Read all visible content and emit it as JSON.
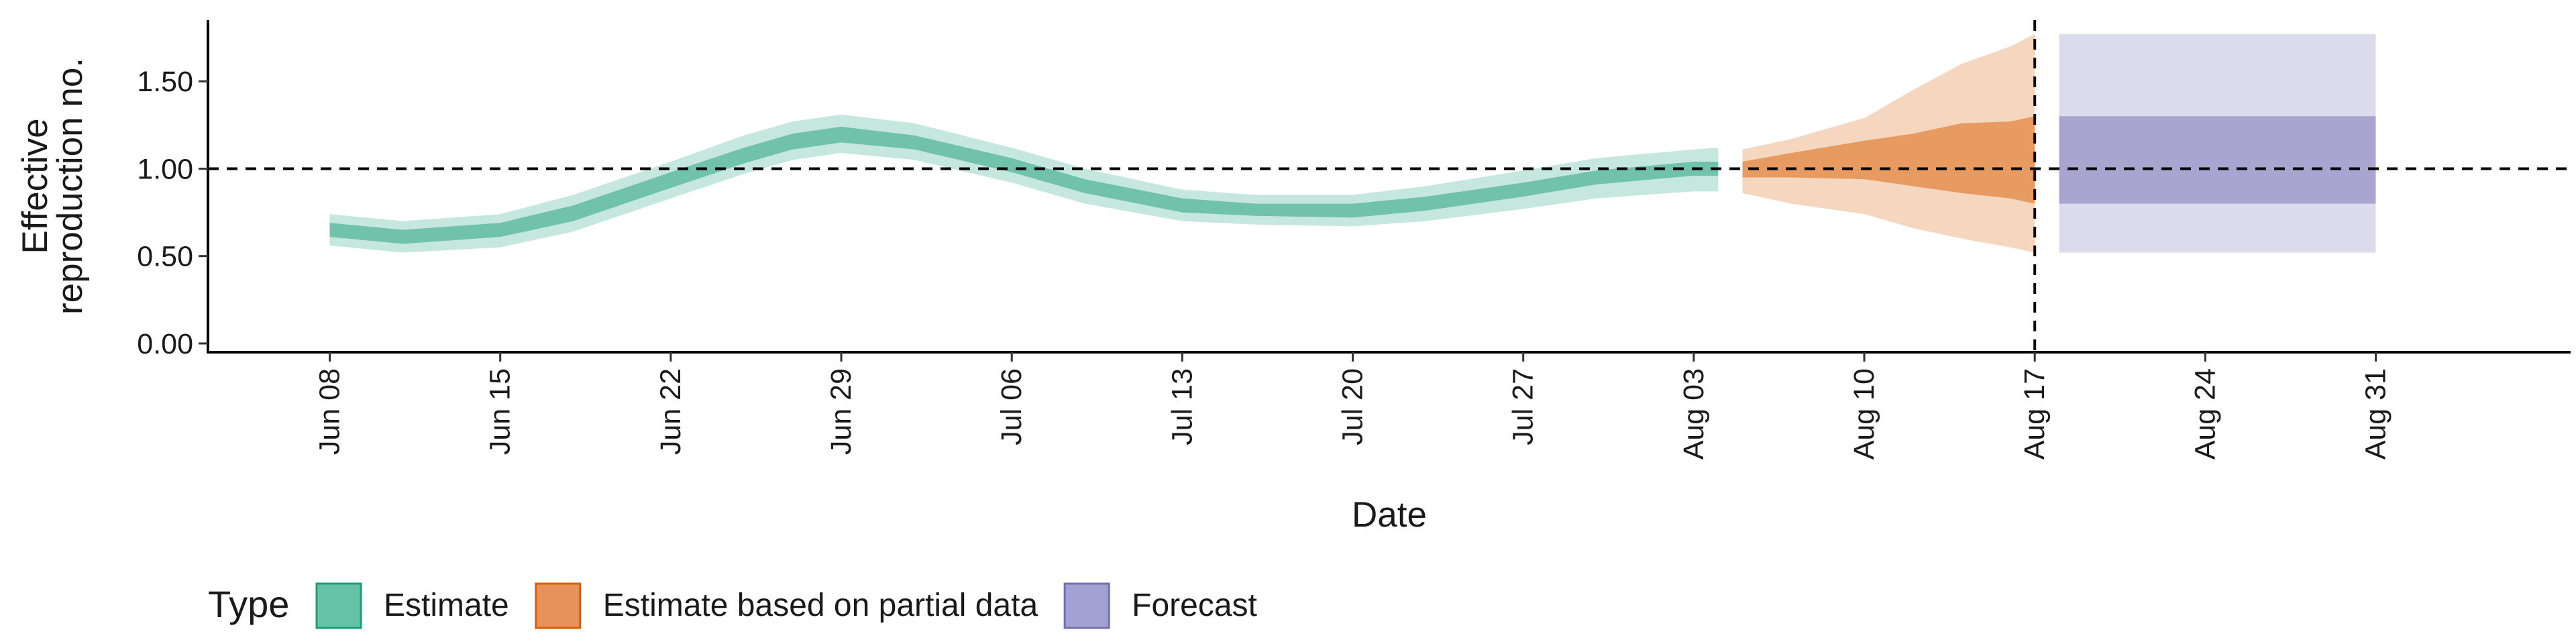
{
  "chart_data": {
    "type": "area",
    "title": "",
    "xlabel": "Date",
    "ylabel_lines": [
      "Effective",
      "reproduction no."
    ],
    "x_type": "date",
    "xlim": [
      "2020-06-03",
      "2020-09-08"
    ],
    "ylim": [
      -0.05,
      1.85
    ],
    "y_ticks": [
      "0.00",
      "0.50",
      "1.00",
      "1.50"
    ],
    "x_ticks": [
      {
        "date": "2020-06-08",
        "label": "Jun 08"
      },
      {
        "date": "2020-06-15",
        "label": "Jun 15"
      },
      {
        "date": "2020-06-22",
        "label": "Jun 22"
      },
      {
        "date": "2020-06-29",
        "label": "Jun 29"
      },
      {
        "date": "2020-07-06",
        "label": "Jul 06"
      },
      {
        "date": "2020-07-13",
        "label": "Jul 13"
      },
      {
        "date": "2020-07-20",
        "label": "Jul 20"
      },
      {
        "date": "2020-07-27",
        "label": "Jul 27"
      },
      {
        "date": "2020-08-03",
        "label": "Aug 03"
      },
      {
        "date": "2020-08-10",
        "label": "Aug 10"
      },
      {
        "date": "2020-08-17",
        "label": "Aug 17"
      },
      {
        "date": "2020-08-24",
        "label": "Aug 24"
      },
      {
        "date": "2020-08-31",
        "label": "Aug 31"
      }
    ],
    "grid": false,
    "reference_line_y": 1.0,
    "reference_line_date": "2020-08-17",
    "legend": {
      "title": "Type",
      "position": "bottom-left",
      "entries": [
        {
          "label": "Estimate",
          "fill": "#66c2a5",
          "stroke": "#1b9e77"
        },
        {
          "label": "Estimate based on partial data",
          "fill": "#e8915a",
          "stroke": "#d95f02"
        },
        {
          "label": "Forecast",
          "fill": "#a3a0d2",
          "stroke": "#7570b3"
        }
      ]
    },
    "series": [
      {
        "type_label": "Estimate",
        "color": "#1b9e77",
        "x": [
          "2020-06-08",
          "2020-06-11",
          "2020-06-15",
          "2020-06-18",
          "2020-06-22",
          "2020-06-25",
          "2020-06-27",
          "2020-06-29",
          "2020-07-02",
          "2020-07-06",
          "2020-07-09",
          "2020-07-13",
          "2020-07-16",
          "2020-07-20",
          "2020-07-23",
          "2020-07-27",
          "2020-07-30",
          "2020-08-03",
          "2020-08-04"
        ],
        "median": [
          0.65,
          0.61,
          0.65,
          0.75,
          0.93,
          1.08,
          1.16,
          1.2,
          1.15,
          1.02,
          0.9,
          0.79,
          0.76,
          0.76,
          0.8,
          0.88,
          0.95,
          1.0,
          1.0
        ],
        "lower_50": [
          0.61,
          0.57,
          0.61,
          0.7,
          0.89,
          1.03,
          1.11,
          1.15,
          1.11,
          0.98,
          0.86,
          0.75,
          0.73,
          0.72,
          0.76,
          0.84,
          0.91,
          0.96,
          0.96
        ],
        "upper_50": [
          0.69,
          0.65,
          0.69,
          0.79,
          0.98,
          1.12,
          1.2,
          1.24,
          1.19,
          1.06,
          0.94,
          0.83,
          0.8,
          0.8,
          0.84,
          0.92,
          0.99,
          1.04,
          1.04
        ],
        "lower_90": [
          0.56,
          0.52,
          0.55,
          0.64,
          0.83,
          0.97,
          1.05,
          1.09,
          1.05,
          0.92,
          0.8,
          0.7,
          0.68,
          0.67,
          0.7,
          0.77,
          0.83,
          0.87,
          0.87
        ],
        "upper_90": [
          0.74,
          0.7,
          0.74,
          0.85,
          1.04,
          1.19,
          1.27,
          1.31,
          1.26,
          1.12,
          1.0,
          0.88,
          0.85,
          0.85,
          0.9,
          0.99,
          1.06,
          1.11,
          1.12
        ]
      },
      {
        "type_label": "Estimate based on partial data",
        "color": "#d95f02",
        "x": [
          "2020-08-05",
          "2020-08-07",
          "2020-08-10",
          "2020-08-12",
          "2020-08-14",
          "2020-08-16",
          "2020-08-17"
        ],
        "median": [
          1.0,
          1.02,
          1.05,
          1.05,
          1.06,
          1.05,
          1.05
        ],
        "lower_50": [
          0.95,
          0.95,
          0.94,
          0.9,
          0.86,
          0.83,
          0.8
        ],
        "upper_50": [
          1.04,
          1.09,
          1.16,
          1.2,
          1.26,
          1.27,
          1.3
        ],
        "lower_90": [
          0.86,
          0.8,
          0.74,
          0.66,
          0.6,
          0.55,
          0.52
        ],
        "upper_90": [
          1.11,
          1.17,
          1.29,
          1.45,
          1.6,
          1.7,
          1.77
        ]
      },
      {
        "type_label": "Forecast",
        "color": "#7570b3",
        "x": [
          "2020-08-18",
          "2020-08-31"
        ],
        "median": [
          1.05,
          1.05
        ],
        "lower_50": [
          0.8,
          0.8
        ],
        "upper_50": [
          1.3,
          1.3
        ],
        "lower_90": [
          0.52,
          0.52
        ],
        "upper_90": [
          1.77,
          1.77
        ]
      }
    ]
  }
}
